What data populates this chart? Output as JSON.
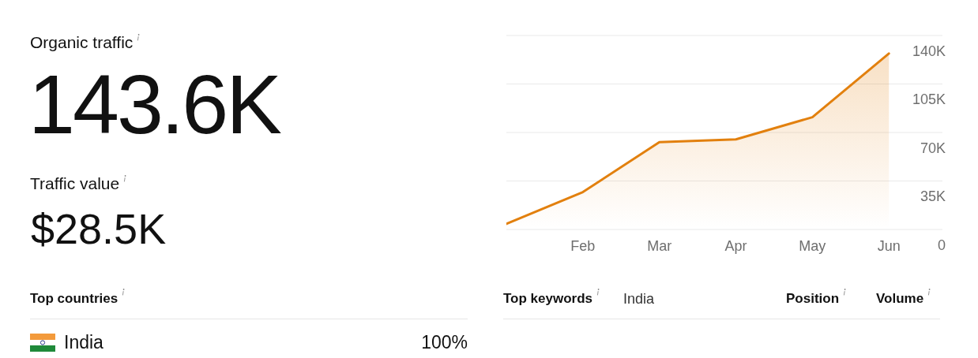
{
  "chart_data": [
    {
      "type": "other",
      "annotations": [
        "Organic traffic",
        "143.6K",
        "Traffic value",
        "$28.5K",
        "Top countries",
        "India",
        "100%",
        "Top keywords",
        "India",
        "Position",
        "Volume"
      ]
    },
    {
      "type": "area",
      "categories": [
        null,
        "Feb",
        "Mar",
        "Apr",
        "May",
        "Jun"
      ],
      "series": [
        {
          "color": "#e2800e",
          "values": [
            4000,
            27000,
            63000,
            65000,
            81000,
            127000
          ]
        }
      ],
      "ylim": [
        0,
        140000
      ],
      "yticks": [
        0,
        {
          "value": 35000,
          "label": "35K"
        },
        {
          "value": 70000,
          "label": "70K"
        },
        {
          "value": 105000,
          "label": "105K"
        },
        {
          "value": 140000,
          "label": "140K"
        }
      ],
      "grid": "y",
      "legend": false,
      "marker": "none",
      "line_style": "solid"
    }
  ]
}
